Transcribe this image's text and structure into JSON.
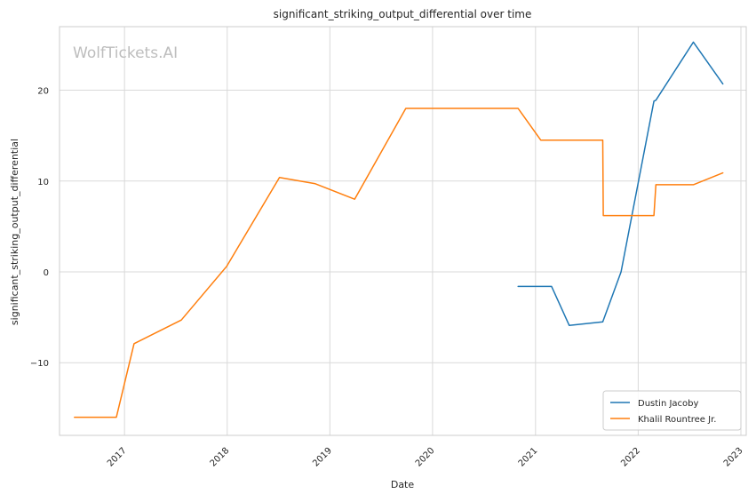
{
  "watermark": "WolfTickets.AI",
  "chart_data": {
    "type": "line",
    "title": "significant_striking_output_differential over time",
    "xlabel": "Date",
    "ylabel": "significant_striking_output_differential",
    "x_is_date": true,
    "xlim": [
      "2016-05-15",
      "2023-01-20"
    ],
    "ylim": [
      -18,
      27
    ],
    "x_ticks": [
      "2017",
      "2018",
      "2019",
      "2020",
      "2021",
      "2022",
      "2023"
    ],
    "y_ticks": [
      -10,
      0,
      10,
      20
    ],
    "y_tick_labels": [
      "−10",
      "0",
      "10",
      "20"
    ],
    "grid": true,
    "legend_position": "lower-right",
    "series": [
      {
        "name": "Dustin Jacoby",
        "color": "#1f77b4",
        "points": [
          [
            "2020-10-31",
            -1.6
          ],
          [
            "2021-02-27",
            -1.6
          ],
          [
            "2021-05-01",
            -5.9
          ],
          [
            "2021-08-28",
            -5.5
          ],
          [
            "2021-11-01",
            0.0
          ],
          [
            "2022-02-26",
            18.8
          ],
          [
            "2022-03-05",
            18.9
          ],
          [
            "2022-07-16",
            25.3
          ],
          [
            "2022-10-29",
            20.7
          ]
        ]
      },
      {
        "name": "Khalil Rountree Jr.",
        "color": "#ff7f0e",
        "points": [
          [
            "2016-07-07",
            -16.0
          ],
          [
            "2016-12-03",
            -16.0
          ],
          [
            "2017-02-04",
            -7.9
          ],
          [
            "2017-07-22",
            -5.3
          ],
          [
            "2017-12-30",
            0.6
          ],
          [
            "2018-07-06",
            10.4
          ],
          [
            "2018-11-10",
            9.7
          ],
          [
            "2019-03-30",
            8.0
          ],
          [
            "2019-09-28",
            18.0
          ],
          [
            "2020-10-31",
            18.0
          ],
          [
            "2021-01-20",
            14.5
          ],
          [
            "2021-08-28",
            14.5
          ],
          [
            "2021-08-30",
            6.2
          ],
          [
            "2022-02-26",
            6.2
          ],
          [
            "2022-03-05",
            9.6
          ],
          [
            "2022-07-16",
            9.6
          ],
          [
            "2022-10-29",
            10.9
          ]
        ]
      }
    ]
  }
}
